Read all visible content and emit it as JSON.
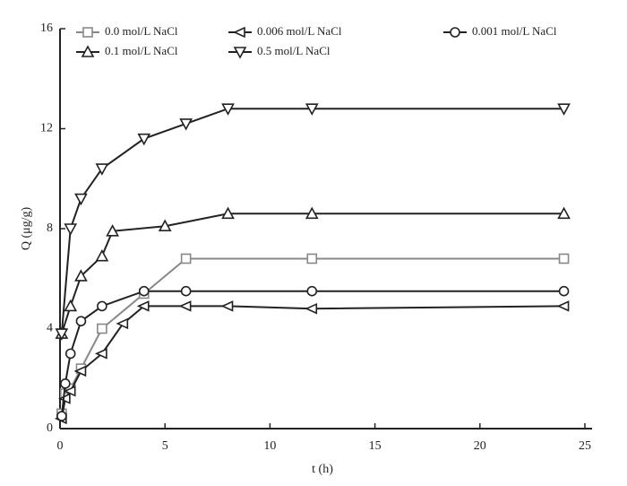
{
  "chart_data": {
    "type": "line",
    "xlabel": "t (h)",
    "ylabel": "Q (μg/g)",
    "xlim": [
      0,
      25
    ],
    "xticks": [
      0,
      5,
      10,
      15,
      20,
      25
    ],
    "ylim": [
      0,
      16
    ],
    "yticks": [
      0,
      4,
      8,
      12,
      16
    ],
    "series": [
      {
        "name": "0.0 mol/L NaCl",
        "color": "#888888",
        "marker": "square",
        "x": [
          0.08,
          0.25,
          0.5,
          1,
          2,
          4,
          6,
          12,
          24
        ],
        "values": [
          0.6,
          1.4,
          1.6,
          2.4,
          4.0,
          5.4,
          6.8,
          6.8,
          6.8
        ]
      },
      {
        "name": "0.006 mol/L NaCl",
        "color": "#222222",
        "marker": "left",
        "x": [
          0.08,
          0.25,
          0.5,
          1,
          2,
          3,
          4,
          6,
          8,
          12,
          24
        ],
        "values": [
          0.4,
          1.2,
          1.5,
          2.3,
          3.0,
          4.2,
          4.9,
          4.9,
          4.9,
          4.8,
          4.9
        ]
      },
      {
        "name": "0.001 mol/L NaCl",
        "color": "#222222",
        "marker": "circle",
        "x": [
          0.08,
          0.25,
          0.5,
          1,
          2,
          4,
          6,
          12,
          24
        ],
        "values": [
          0.5,
          1.8,
          3.0,
          4.3,
          4.9,
          5.5,
          5.5,
          5.5,
          5.5
        ]
      },
      {
        "name": "0.1 mol/L NaCl",
        "color": "#222222",
        "marker": "up",
        "x": [
          0.08,
          0.5,
          1,
          2,
          2.5,
          5,
          8,
          12,
          24
        ],
        "values": [
          3.8,
          4.9,
          6.1,
          6.9,
          7.9,
          8.1,
          8.6,
          8.6,
          8.6
        ]
      },
      {
        "name": "0.5 mol/L NaCl",
        "color": "#222222",
        "marker": "down",
        "x": [
          0.08,
          0.5,
          1,
          2,
          4,
          6,
          8,
          12,
          24
        ],
        "values": [
          3.8,
          8.0,
          9.2,
          10.4,
          11.6,
          12.2,
          12.8,
          12.8,
          12.8
        ]
      }
    ]
  }
}
